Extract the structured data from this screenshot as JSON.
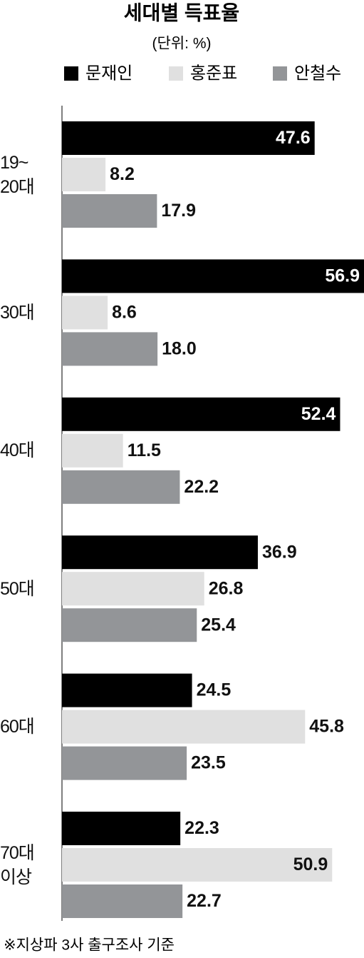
{
  "chart_data": {
    "type": "bar",
    "orientation": "horizontal",
    "title": "세대별 득표율",
    "subtitle": "(단위: %)",
    "categories": [
      "19~\n20대",
      "30대",
      "40대",
      "50대",
      "60대",
      "70대\n이상"
    ],
    "series": [
      {
        "name": "문재인",
        "color": "#000000",
        "values": [
          47.6,
          56.9,
          52.4,
          36.9,
          24.5,
          22.3
        ]
      },
      {
        "name": "홍준표",
        "color": "#e0e0e0",
        "values": [
          8.2,
          8.6,
          11.5,
          26.8,
          45.8,
          50.9
        ]
      },
      {
        "name": "안철수",
        "color": "#939598",
        "values": [
          17.9,
          18.0,
          22.2,
          25.4,
          23.5,
          22.7
        ],
        "value_labels": [
          "17.9",
          "18.0",
          "22.2",
          "25.4",
          "23.5",
          "22.7"
        ]
      }
    ],
    "footnote": "※지상파 3사 출구조사 기준"
  }
}
